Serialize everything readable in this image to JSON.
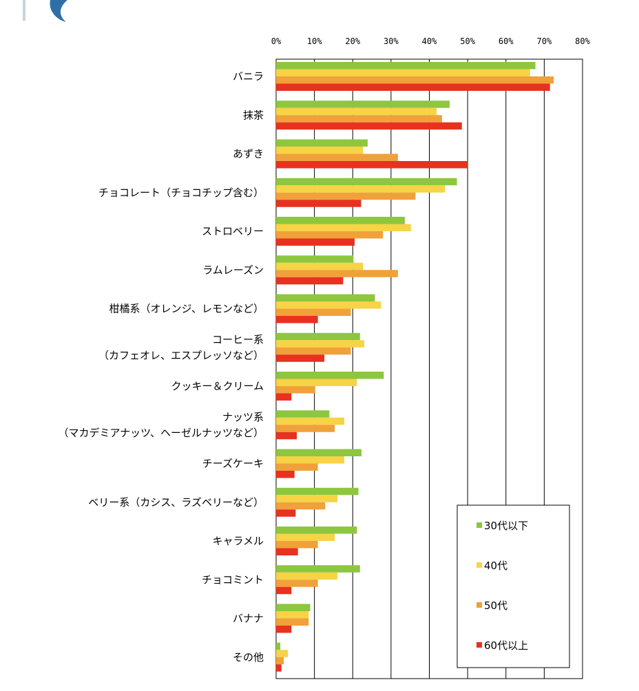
{
  "chart_data": {
    "type": "bar",
    "orientation": "horizontal",
    "title": "",
    "xlabel": "",
    "ylabel": "",
    "xlim": [
      0,
      80
    ],
    "x_ticks": [
      "0%",
      "10%",
      "20%",
      "30%",
      "40%",
      "50%",
      "60%",
      "70%",
      "80%"
    ],
    "grid": true,
    "legend_position": "bottom-right",
    "categories": [
      [
        "バニラ"
      ],
      [
        "抹茶"
      ],
      [
        "あずき"
      ],
      [
        "チョコレート（チョコチップ含む）"
      ],
      [
        "ストロベリー"
      ],
      [
        "ラムレーズン"
      ],
      [
        "柑橘系（オレンジ、レモンなど）"
      ],
      [
        "コーヒー系",
        "（カフェオレ、エスプレッソなど）"
      ],
      [
        "クッキー＆クリーム"
      ],
      [
        "ナッツ系",
        "（マカデミアナッツ、ヘーゼルナッツなど）"
      ],
      [
        "チーズケーキ"
      ],
      [
        "ベリー系（カシス、ラズベリーなど）"
      ],
      [
        "キャラメル"
      ],
      [
        "チョコミント"
      ],
      [
        "バナナ"
      ],
      [
        "その他"
      ]
    ],
    "series": [
      {
        "name": "30代以下",
        "color": "#8dc63f",
        "values": [
          67.7,
          45.3,
          23.9,
          47.2,
          33.6,
          20.2,
          25.8,
          21.9,
          28.1,
          13.9,
          22.3,
          21.5,
          21.1,
          21.9,
          8.9,
          1.1
        ]
      },
      {
        "name": "40代",
        "color": "#f7d346",
        "values": [
          66.3,
          41.9,
          22.7,
          44.1,
          35.2,
          22.7,
          27.4,
          23.0,
          21.1,
          17.8,
          17.8,
          16.0,
          15.3,
          16.0,
          8.5,
          3.1
        ]
      },
      {
        "name": "50代",
        "color": "#f0a13a",
        "values": [
          72.5,
          43.3,
          31.8,
          36.4,
          27.9,
          31.8,
          19.5,
          19.5,
          10.2,
          15.3,
          10.9,
          12.8,
          10.9,
          10.9,
          8.5,
          2.0
        ]
      },
      {
        "name": "60代以上",
        "color": "#e8311f",
        "values": [
          71.5,
          48.5,
          50.1,
          22.2,
          20.5,
          17.5,
          10.9,
          12.6,
          4.0,
          5.4,
          4.8,
          5.1,
          5.7,
          4.0,
          4.0,
          1.4
        ]
      }
    ]
  }
}
